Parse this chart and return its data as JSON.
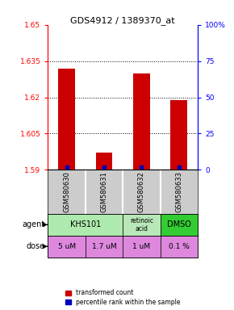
{
  "title": "GDS4912 / 1389370_at",
  "samples": [
    "GSM580630",
    "GSM580631",
    "GSM580632",
    "GSM580633"
  ],
  "red_values": [
    1.632,
    1.597,
    1.63,
    1.619
  ],
  "blue_values": [
    1.591,
    1.591,
    1.591,
    1.591
  ],
  "ylim_left": [
    1.59,
    1.65
  ],
  "ylim_right": [
    0,
    100
  ],
  "yticks_left": [
    1.59,
    1.605,
    1.62,
    1.635,
    1.65
  ],
  "yticks_right": [
    0,
    25,
    50,
    75,
    100
  ],
  "ytick_labels_right": [
    "0",
    "25",
    "50",
    "75",
    "100%"
  ],
  "agent_groups": [
    {
      "c0": 0,
      "c1": 1,
      "name": "KHS101",
      "color": "#aeeaae"
    },
    {
      "c0": 2,
      "c1": 2,
      "name": "retinoic\nacid",
      "color": "#b8e8b8"
    },
    {
      "c0": 3,
      "c1": 3,
      "name": "DMSO",
      "color": "#33cc33"
    }
  ],
  "dose_labels": [
    "5 uM",
    "1.7 uM",
    "1 uM",
    "0.1 %"
  ],
  "dose_color": "#dd88dd",
  "bar_color": "#cc0000",
  "blue_color": "#0000bb",
  "sample_bg": "#cccccc",
  "legend_red": "transformed count",
  "legend_blue": "percentile rank within the sample"
}
